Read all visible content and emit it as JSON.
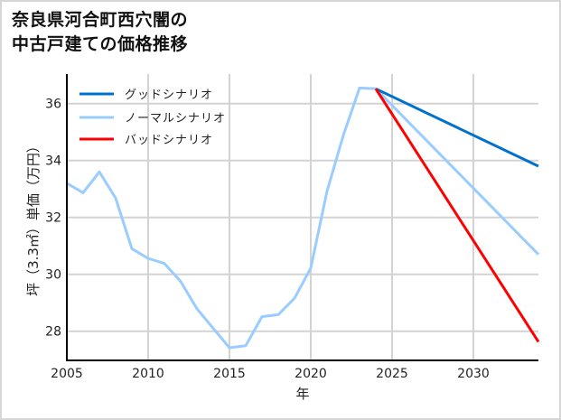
{
  "title": {
    "line1": "奈良県河合町西穴闇の",
    "line2": "中古戸建ての価格推移"
  },
  "chart_data": {
    "type": "line",
    "title": "奈良県河合町西穴闇の中古戸建ての価格推移",
    "xlabel": "年",
    "ylabel": "坪（3.3㎡）単価（万円）",
    "xlim": [
      2005,
      2034
    ],
    "ylim": [
      27,
      37
    ],
    "xticks": [
      2005,
      2010,
      2015,
      2020,
      2025,
      2030
    ],
    "yticks": [
      28,
      30,
      32,
      34,
      36
    ],
    "grid": true,
    "legend_position": "upper left",
    "legend": [
      "グッドシナリオ",
      "ノーマルシナリオ",
      "バッドシナリオ"
    ],
    "series": [
      {
        "name": "ノーマルシナリオ",
        "color": "#99ccff",
        "role": "history",
        "x": [
          2005,
          2006,
          2007,
          2008,
          2009,
          2010,
          2011,
          2012,
          2013,
          2014,
          2015,
          2016,
          2017,
          2018,
          2019,
          2020,
          2021,
          2022,
          2023,
          2024
        ],
        "values": [
          33.2,
          32.87,
          33.6,
          32.68,
          30.9,
          30.56,
          30.38,
          29.75,
          28.79,
          28.1,
          27.42,
          27.49,
          28.51,
          28.58,
          29.16,
          30.22,
          32.92,
          34.88,
          36.55,
          36.52
        ]
      },
      {
        "name": "グッドシナリオ",
        "color": "#0072ce",
        "x": [
          2024,
          2034
        ],
        "values": [
          36.52,
          33.8
        ]
      },
      {
        "name": "ノーマルシナリオ",
        "color": "#99ccff",
        "x": [
          2024,
          2034
        ],
        "values": [
          36.52,
          30.7
        ]
      },
      {
        "name": "バッドシナリオ",
        "color": "#ff0000",
        "x": [
          2024,
          2034
        ],
        "values": [
          36.52,
          27.63
        ]
      }
    ]
  },
  "legend": {
    "items": [
      {
        "label": "グッドシナリオ",
        "color": "#0072ce"
      },
      {
        "label": "ノーマルシナリオ",
        "color": "#99ccff"
      },
      {
        "label": "バッドシナリオ",
        "color": "#ff0000"
      }
    ]
  },
  "axes": {
    "xlabel": "年",
    "ylabel": "坪（3.3㎡）単価（万円）"
  }
}
